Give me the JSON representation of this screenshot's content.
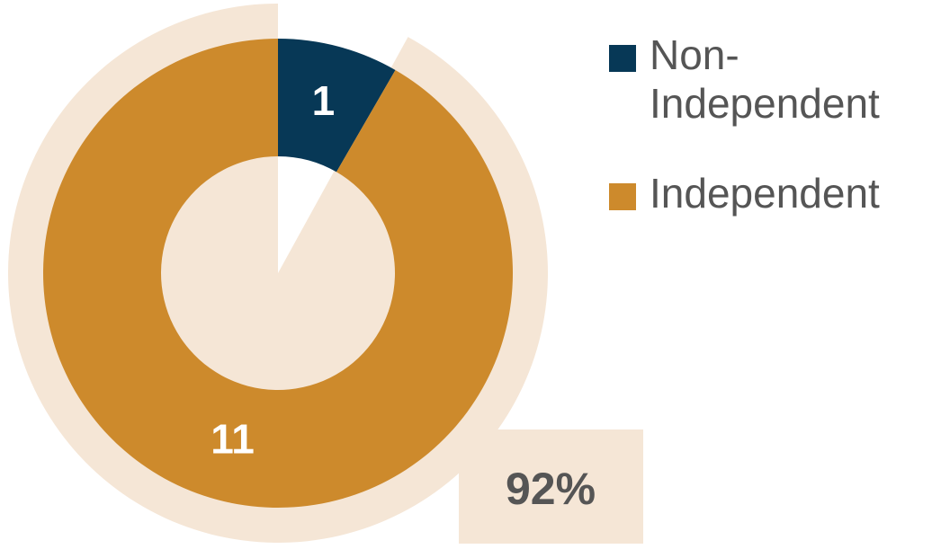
{
  "chart_data": {
    "type": "donut",
    "categories": [
      "Non-Independent",
      "Independent"
    ],
    "values": [
      1,
      11
    ],
    "colors": [
      "#073856",
      "#cd8a2c"
    ],
    "annotation": {
      "value": 92,
      "label": "92%"
    },
    "highlight_color": "#f5e6d6"
  }
}
